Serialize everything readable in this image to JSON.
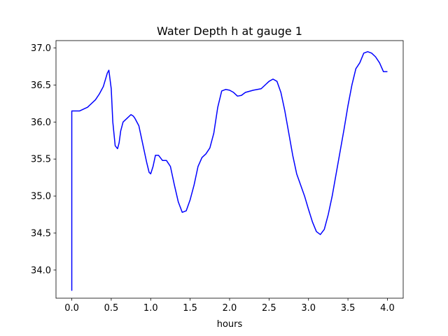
{
  "chart_data": {
    "type": "line",
    "title": "Water Depth h at gauge 1",
    "xlabel": "hours",
    "ylabel": "",
    "xlim": [
      -0.2,
      4.2
    ],
    "ylim": [
      33.62,
      37.1
    ],
    "xticks": [
      0.0,
      0.5,
      1.0,
      1.5,
      2.0,
      2.5,
      3.0,
      3.5,
      4.0
    ],
    "xtick_labels": [
      "0.0",
      "0.5",
      "1.0",
      "1.5",
      "2.0",
      "2.5",
      "3.0",
      "3.5",
      "4.0"
    ],
    "yticks": [
      34.0,
      34.5,
      35.0,
      35.5,
      36.0,
      36.5,
      37.0
    ],
    "ytick_labels": [
      "34.0",
      "34.5",
      "35.0",
      "35.5",
      "36.0",
      "36.5",
      "37.0"
    ],
    "grid": false,
    "legend": "none",
    "series": [
      {
        "color": "#0000ff",
        "x": [
          0.0,
          0.0,
          0.02,
          0.1,
          0.2,
          0.3,
          0.35,
          0.4,
          0.45,
          0.47,
          0.5,
          0.52,
          0.55,
          0.58,
          0.6,
          0.62,
          0.65,
          0.7,
          0.75,
          0.78,
          0.8,
          0.85,
          0.9,
          0.95,
          0.98,
          1.0,
          1.03,
          1.06,
          1.1,
          1.15,
          1.2,
          1.25,
          1.3,
          1.35,
          1.4,
          1.45,
          1.5,
          1.55,
          1.6,
          1.65,
          1.7,
          1.75,
          1.8,
          1.85,
          1.9,
          1.95,
          2.0,
          2.05,
          2.1,
          2.15,
          2.2,
          2.3,
          2.4,
          2.5,
          2.55,
          2.6,
          2.65,
          2.7,
          2.75,
          2.8,
          2.85,
          2.9,
          2.95,
          3.0,
          3.05,
          3.1,
          3.15,
          3.2,
          3.25,
          3.3,
          3.35,
          3.4,
          3.45,
          3.5,
          3.55,
          3.6,
          3.65,
          3.7,
          3.75,
          3.8,
          3.85,
          3.9,
          3.95,
          4.0
        ],
        "y": [
          33.72,
          36.15,
          36.15,
          36.15,
          36.2,
          36.3,
          36.38,
          36.48,
          36.66,
          36.7,
          36.45,
          36.0,
          35.68,
          35.64,
          35.72,
          35.88,
          36.0,
          36.05,
          36.1,
          36.08,
          36.05,
          35.95,
          35.7,
          35.45,
          35.32,
          35.3,
          35.4,
          35.55,
          35.55,
          35.48,
          35.48,
          35.4,
          35.15,
          34.92,
          34.78,
          34.8,
          34.95,
          35.15,
          35.4,
          35.52,
          35.57,
          35.65,
          35.85,
          36.2,
          36.42,
          36.44,
          36.43,
          36.4,
          36.35,
          36.36,
          36.4,
          36.43,
          36.45,
          36.55,
          36.58,
          36.55,
          36.4,
          36.15,
          35.85,
          35.55,
          35.3,
          35.15,
          35.0,
          34.82,
          34.65,
          34.52,
          34.48,
          34.55,
          34.75,
          35.0,
          35.3,
          35.6,
          35.9,
          36.22,
          36.5,
          36.72,
          36.8,
          36.93,
          36.95,
          36.93,
          36.88,
          36.8,
          36.68,
          36.68
        ]
      }
    ]
  }
}
